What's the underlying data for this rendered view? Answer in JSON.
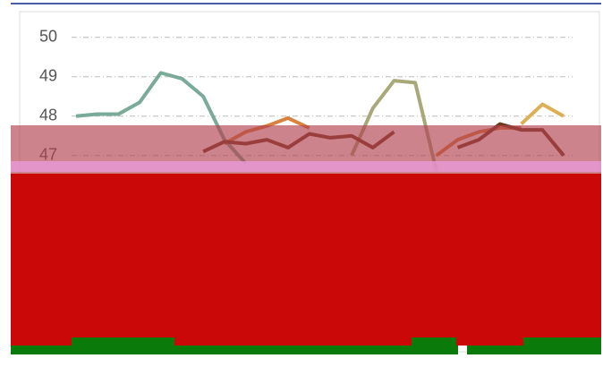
{
  "chart_data": {
    "type": "line",
    "categories": [
      null,
      null,
      null,
      null,
      null,
      null,
      null,
      null,
      null,
      null,
      null,
      null,
      null,
      null,
      null,
      null,
      null,
      null,
      null,
      null,
      null,
      null,
      null,
      null
    ],
    "series": [
      {
        "name": null,
        "color": "#7aaa98",
        "values": [
          48.0,
          48.05,
          48.05,
          48.35,
          49.1,
          48.95,
          48.5,
          47.4,
          46.8,
          null,
          null,
          null,
          null,
          null,
          null,
          null,
          null,
          null,
          null,
          null,
          null,
          null,
          null,
          null
        ]
      },
      {
        "name": null,
        "color": "#a8a878",
        "values": [
          null,
          null,
          null,
          null,
          null,
          null,
          null,
          null,
          null,
          null,
          null,
          null,
          null,
          47.0,
          48.2,
          48.9,
          48.85,
          46.6,
          null,
          null,
          null,
          null,
          null,
          null
        ]
      },
      {
        "name": null,
        "color": "#d9823e",
        "values": [
          null,
          null,
          null,
          null,
          null,
          null,
          null,
          47.3,
          47.6,
          47.75,
          47.95,
          47.7,
          null,
          null,
          null,
          null,
          null,
          47.0,
          47.4,
          47.6,
          47.7,
          47.7,
          null,
          null
        ]
      },
      {
        "name": null,
        "color": "#6e3a1e",
        "values": [
          null,
          null,
          null,
          null,
          null,
          null,
          47.1,
          47.35,
          47.3,
          47.4,
          47.2,
          47.55,
          47.45,
          47.5,
          47.2,
          47.6,
          null,
          null,
          47.2,
          47.4,
          47.8,
          47.65,
          47.65,
          47.0
        ]
      },
      {
        "name": null,
        "color": "#ddb055",
        "values": [
          null,
          null,
          null,
          null,
          null,
          null,
          null,
          null,
          null,
          null,
          null,
          null,
          null,
          null,
          null,
          null,
          null,
          null,
          null,
          null,
          null,
          47.8,
          48.3,
          48.0
        ]
      }
    ],
    "ylim": [
      43.4,
      50.2
    ],
    "yticks": [
      50,
      49,
      48,
      47
    ],
    "grid": true
  }
}
